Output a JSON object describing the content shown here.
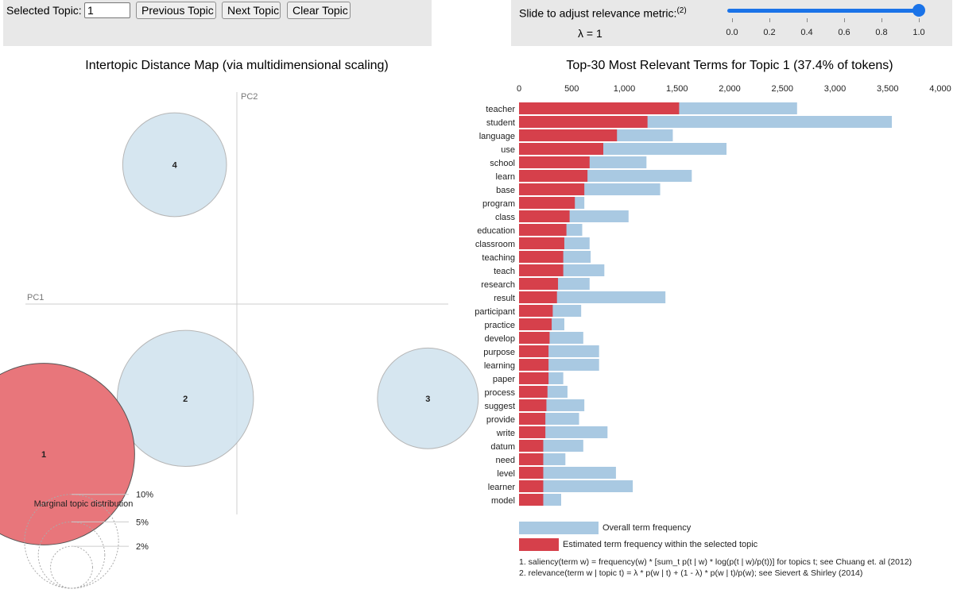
{
  "controls": {
    "selected_topic_label": "Selected Topic:",
    "selected_topic_value": "1",
    "prev_label": "Previous Topic",
    "next_label": "Next Topic",
    "clear_label": "Clear Topic",
    "slider_label": "Slide to adjust relevance metric:",
    "slider_footnote_ref": "(2)",
    "lambda_text": "λ = 1",
    "slider_value": 1.0,
    "slider_ticks": [
      "0.0",
      "0.2",
      "0.4",
      "0.6",
      "0.8",
      "1.0"
    ]
  },
  "titles": {
    "left": "Intertopic Distance Map (via multidimensional scaling)",
    "right": "Top-30 Most Relevant Terms for Topic 1 (37.4% of tokens)"
  },
  "footnotes": {
    "note1": "1. saliency(term w) = frequency(w) * [sum_t p(t | w) * log(p(t | w)/p(t))] for topics t; see Chuang et. al (2012)",
    "note2": "2. relevance(term w | topic t) = λ * p(w | t) + (1 - λ) * p(w | t)/p(w); see Sievert & Shirley (2014)"
  },
  "colors": {
    "selected": "#d6404b",
    "background_bar": "#a9c9e2",
    "topic_circle": "#d0e2ee",
    "selected_circle": "#e8767b"
  },
  "chart_data": [
    {
      "type": "scatter",
      "title": "Intertopic Distance Map (via multidimensional scaling)",
      "xlabel": "PC1",
      "ylabel": "PC2",
      "selected_topic": "1",
      "topics": [
        {
          "label": "1",
          "x": -0.9,
          "y": -0.7,
          "size": 37.4
        },
        {
          "label": "2",
          "x": -0.24,
          "y": -0.44,
          "size": 21.0
        },
        {
          "label": "3",
          "x": 0.89,
          "y": -0.44,
          "size": 11.5
        },
        {
          "label": "4",
          "x": -0.29,
          "y": 0.65,
          "size": 12.2
        }
      ],
      "size_legend": {
        "title": "Marginal topic distribution",
        "levels": [
          "2%",
          "5%",
          "10%"
        ]
      }
    },
    {
      "type": "bar",
      "title": "Top-30 Most Relevant Terms for Topic 1 (37.4% of tokens)",
      "orientation": "horizontal",
      "xlim": [
        0,
        4000
      ],
      "x_ticks": [
        "0",
        "500",
        "1,000",
        "1,500",
        "2,000",
        "2,500",
        "3,000",
        "3,500",
        "4,000"
      ],
      "categories": [
        "teacher",
        "student",
        "language",
        "use",
        "school",
        "learn",
        "base",
        "program",
        "class",
        "education",
        "classroom",
        "teaching",
        "teach",
        "research",
        "result",
        "participant",
        "practice",
        "develop",
        "purpose",
        "learning",
        "paper",
        "process",
        "suggest",
        "provide",
        "write",
        "datum",
        "need",
        "level",
        "learner",
        "model"
      ],
      "series": [
        {
          "name": "Overall term frequency",
          "values": [
            2640,
            3540,
            1460,
            1970,
            1210,
            1640,
            1340,
            620,
            1040,
            600,
            670,
            680,
            810,
            670,
            1390,
            590,
            430,
            610,
            760,
            760,
            420,
            460,
            620,
            570,
            840,
            610,
            440,
            920,
            1080,
            400
          ]
        },
        {
          "name": "Estimated term frequency within the selected topic",
          "values": [
            1520,
            1220,
            930,
            800,
            670,
            650,
            620,
            530,
            480,
            450,
            430,
            420,
            420,
            370,
            360,
            320,
            310,
            290,
            280,
            280,
            280,
            270,
            260,
            250,
            250,
            230,
            230,
            230,
            230,
            230
          ]
        }
      ],
      "legend_position": "bottom"
    }
  ]
}
